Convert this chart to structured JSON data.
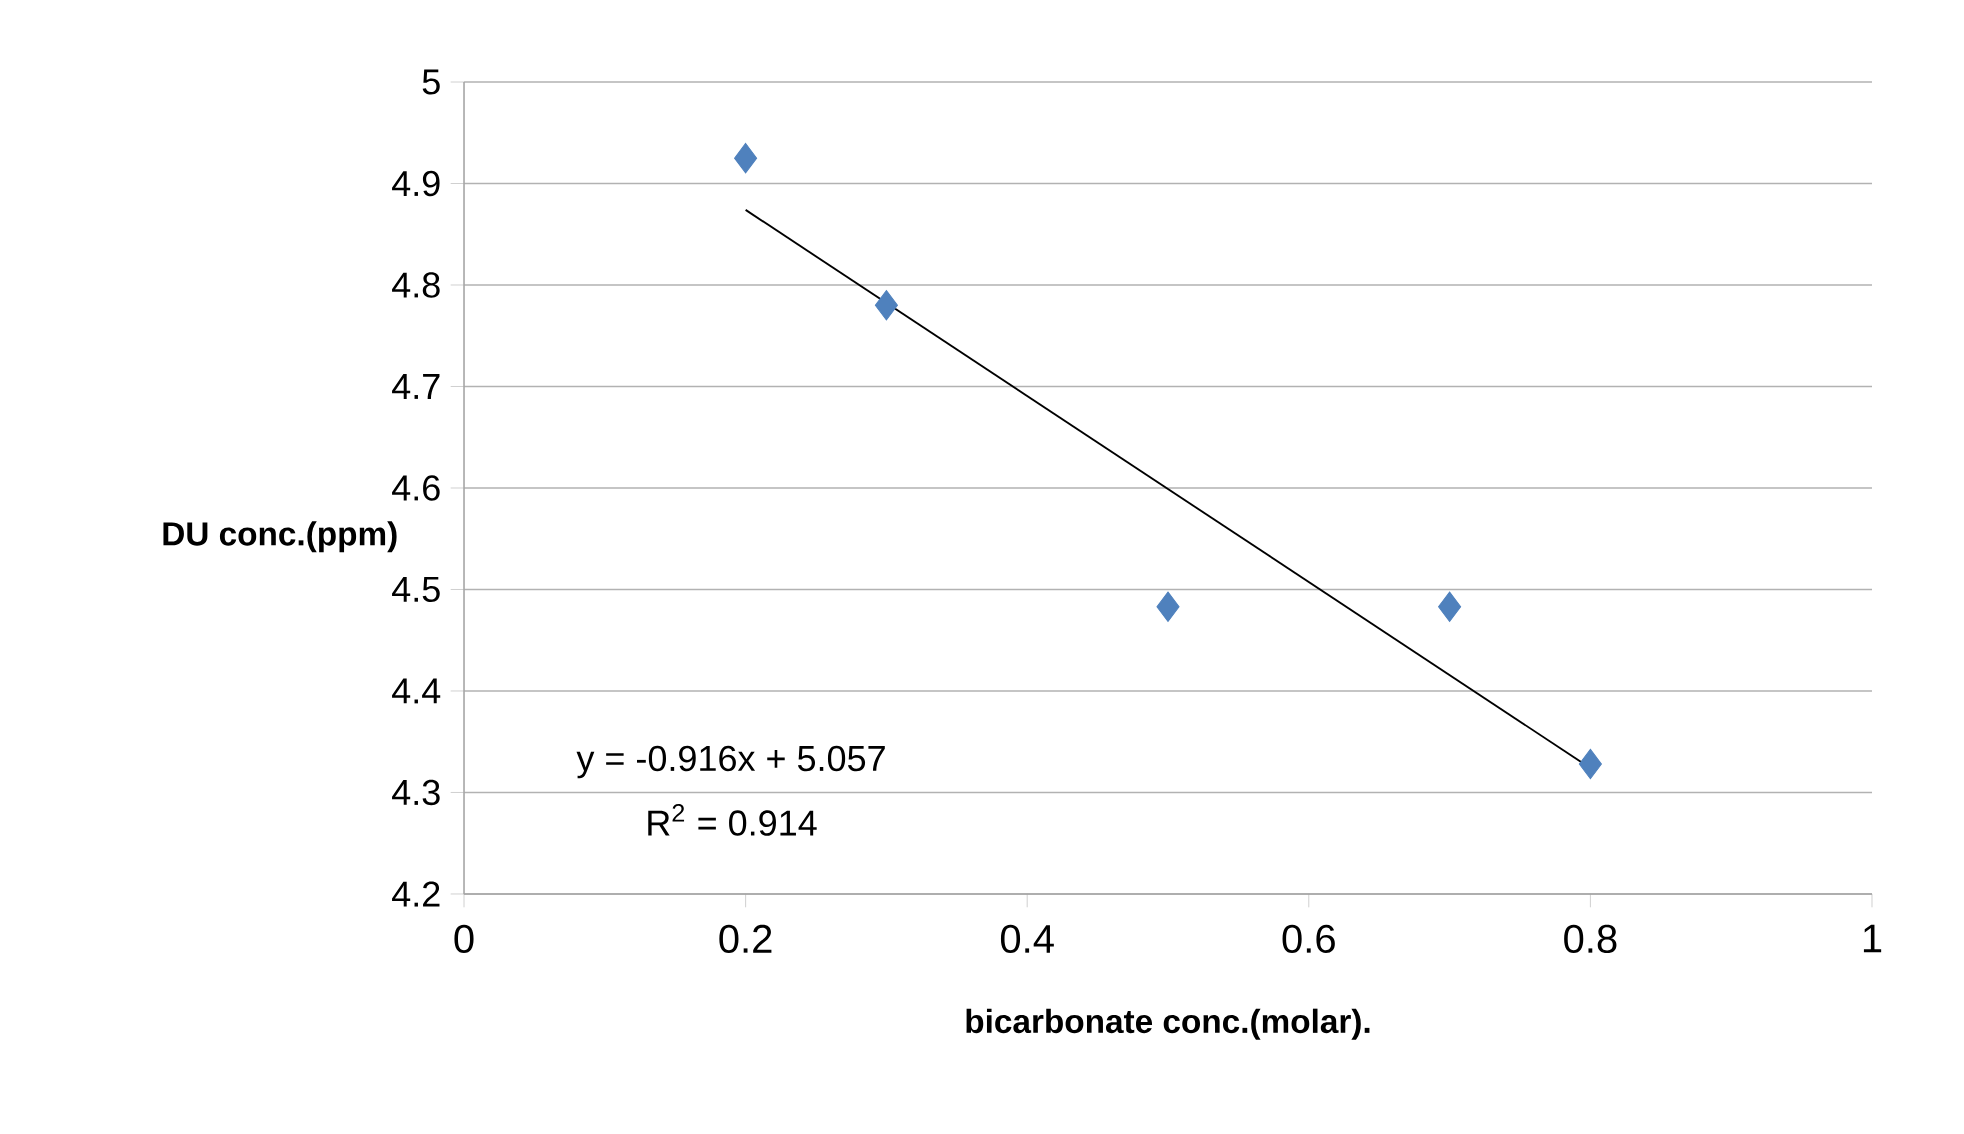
{
  "chart_data": {
    "type": "scatter",
    "xlabel": "bicarbonate conc.(molar).",
    "ylabel": "DU conc.(ppm)",
    "xlim": [
      0,
      1
    ],
    "ylim": [
      4.2,
      5
    ],
    "xticks": [
      0,
      0.2,
      0.4,
      0.6,
      0.8,
      1
    ],
    "yticks": [
      4.2,
      4.3,
      4.4,
      4.5,
      4.6,
      4.7,
      4.8,
      4.9,
      5
    ],
    "grid": "y",
    "marker": "diamond",
    "series": [
      {
        "color": "#4f81bd",
        "x": [
          0.2,
          0.3,
          0.5,
          0.7,
          0.8
        ],
        "values": [
          4.925,
          4.78,
          4.483,
          4.483,
          4.328
        ]
      },
      {
        "type": "line",
        "color": "#000000",
        "marker": "none",
        "x": [
          0.2,
          0.8
        ],
        "values": [
          4.874,
          4.324
        ]
      }
    ],
    "annotations": [
      "y = -0.916x + 5.057",
      "R$^{2}$ = 0.914"
    ]
  }
}
